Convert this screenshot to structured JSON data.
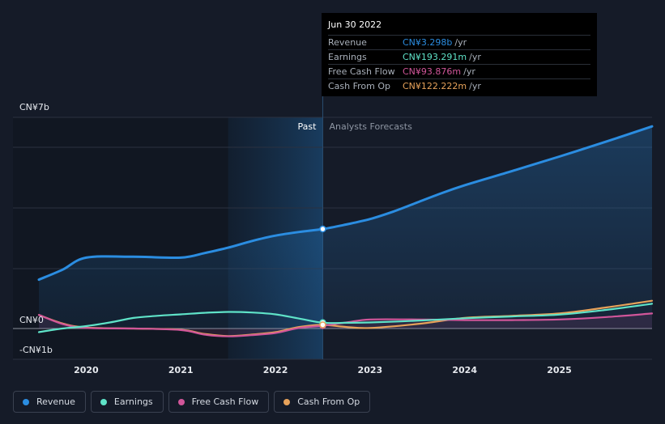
{
  "chart_data": {
    "type": "line",
    "y_unit_labels": [
      "CN¥7b",
      "CN¥0",
      "-CN¥1b"
    ],
    "ylim": [
      -1,
      7
    ],
    "xlim": [
      2019.5,
      2025.98
    ],
    "x_ticks": [
      2020,
      2021,
      2022,
      2023,
      2024,
      2025
    ],
    "past_label": "Past",
    "forecast_label": "Analysts Forecasts",
    "past_end": 2022.5,
    "shade_start": 2021.5,
    "series": [
      {
        "name": "Revenue",
        "color": "#2b8de1",
        "fill": true,
        "points": [
          [
            2019.5,
            1.62
          ],
          [
            2019.75,
            1.95
          ],
          [
            2020.0,
            2.35
          ],
          [
            2020.5,
            2.38
          ],
          [
            2021.0,
            2.35
          ],
          [
            2021.25,
            2.5
          ],
          [
            2021.5,
            2.68
          ],
          [
            2021.75,
            2.9
          ],
          [
            2022.0,
            3.08
          ],
          [
            2022.25,
            3.2
          ],
          [
            2022.5,
            3.298
          ],
          [
            2022.75,
            3.45
          ],
          [
            2023.0,
            3.63
          ],
          [
            2023.25,
            3.88
          ],
          [
            2023.5,
            4.18
          ],
          [
            2023.75,
            4.48
          ],
          [
            2024.0,
            4.75
          ],
          [
            2024.5,
            5.22
          ],
          [
            2025.0,
            5.7
          ],
          [
            2025.5,
            6.2
          ],
          [
            2025.98,
            6.7
          ]
        ]
      },
      {
        "name": "Earnings",
        "color": "#5fe3c8",
        "fill": false,
        "points": [
          [
            2019.5,
            -0.12
          ],
          [
            2019.75,
            0.0
          ],
          [
            2020.0,
            0.08
          ],
          [
            2020.25,
            0.2
          ],
          [
            2020.5,
            0.35
          ],
          [
            2020.75,
            0.42
          ],
          [
            2021.0,
            0.47
          ],
          [
            2021.25,
            0.52
          ],
          [
            2021.5,
            0.55
          ],
          [
            2021.75,
            0.53
          ],
          [
            2022.0,
            0.47
          ],
          [
            2022.25,
            0.33
          ],
          [
            2022.5,
            0.193
          ],
          [
            2022.75,
            0.19
          ],
          [
            2023.0,
            0.2
          ],
          [
            2023.5,
            0.26
          ],
          [
            2024.0,
            0.34
          ],
          [
            2024.5,
            0.4
          ],
          [
            2025.0,
            0.46
          ],
          [
            2025.5,
            0.62
          ],
          [
            2025.98,
            0.82
          ]
        ]
      },
      {
        "name": "Free Cash Flow",
        "color": "#d1569a",
        "fill": false,
        "points": [
          [
            2019.5,
            0.45
          ],
          [
            2019.75,
            0.15
          ],
          [
            2020.0,
            0.02
          ],
          [
            2020.5,
            0.0
          ],
          [
            2021.0,
            -0.05
          ],
          [
            2021.25,
            -0.2
          ],
          [
            2021.5,
            -0.26
          ],
          [
            2021.75,
            -0.22
          ],
          [
            2022.0,
            -0.15
          ],
          [
            2022.25,
            0.02
          ],
          [
            2022.5,
            0.094
          ],
          [
            2022.75,
            0.2
          ],
          [
            2023.0,
            0.3
          ],
          [
            2023.5,
            0.3
          ],
          [
            2024.0,
            0.28
          ],
          [
            2024.5,
            0.28
          ],
          [
            2025.0,
            0.3
          ],
          [
            2025.5,
            0.38
          ],
          [
            2025.98,
            0.5
          ]
        ]
      },
      {
        "name": "Cash From Op",
        "color": "#e7a25a",
        "fill": false,
        "points": [
          [
            2019.5,
            0.45
          ],
          [
            2019.75,
            0.17
          ],
          [
            2020.0,
            0.03
          ],
          [
            2020.5,
            0.0
          ],
          [
            2021.0,
            -0.04
          ],
          [
            2021.25,
            -0.18
          ],
          [
            2021.5,
            -0.25
          ],
          [
            2021.75,
            -0.2
          ],
          [
            2022.0,
            -0.12
          ],
          [
            2022.25,
            0.05
          ],
          [
            2022.5,
            0.122
          ],
          [
            2022.75,
            0.05
          ],
          [
            2023.0,
            0.02
          ],
          [
            2023.5,
            0.15
          ],
          [
            2024.0,
            0.35
          ],
          [
            2024.5,
            0.42
          ],
          [
            2025.0,
            0.5
          ],
          [
            2025.5,
            0.7
          ],
          [
            2025.98,
            0.92
          ]
        ]
      }
    ]
  },
  "tooltip": {
    "date": "Jun 30 2022",
    "rows": [
      {
        "label": "Revenue",
        "value": "CN¥3.298b",
        "unit": "/yr",
        "color": "#2b8de1"
      },
      {
        "label": "Earnings",
        "value": "CN¥193.291m",
        "unit": "/yr",
        "color": "#5fe3c8"
      },
      {
        "label": "Free Cash Flow",
        "value": "CN¥93.876m",
        "unit": "/yr",
        "color": "#d1569a"
      },
      {
        "label": "Cash From Op",
        "value": "CN¥122.222m",
        "unit": "/yr",
        "color": "#e7a25a"
      }
    ]
  },
  "legend": [
    {
      "label": "Revenue",
      "color": "#2b8de1"
    },
    {
      "label": "Earnings",
      "color": "#5fe3c8"
    },
    {
      "label": "Free Cash Flow",
      "color": "#d1569a"
    },
    {
      "label": "Cash From Op",
      "color": "#e7a25a"
    }
  ]
}
